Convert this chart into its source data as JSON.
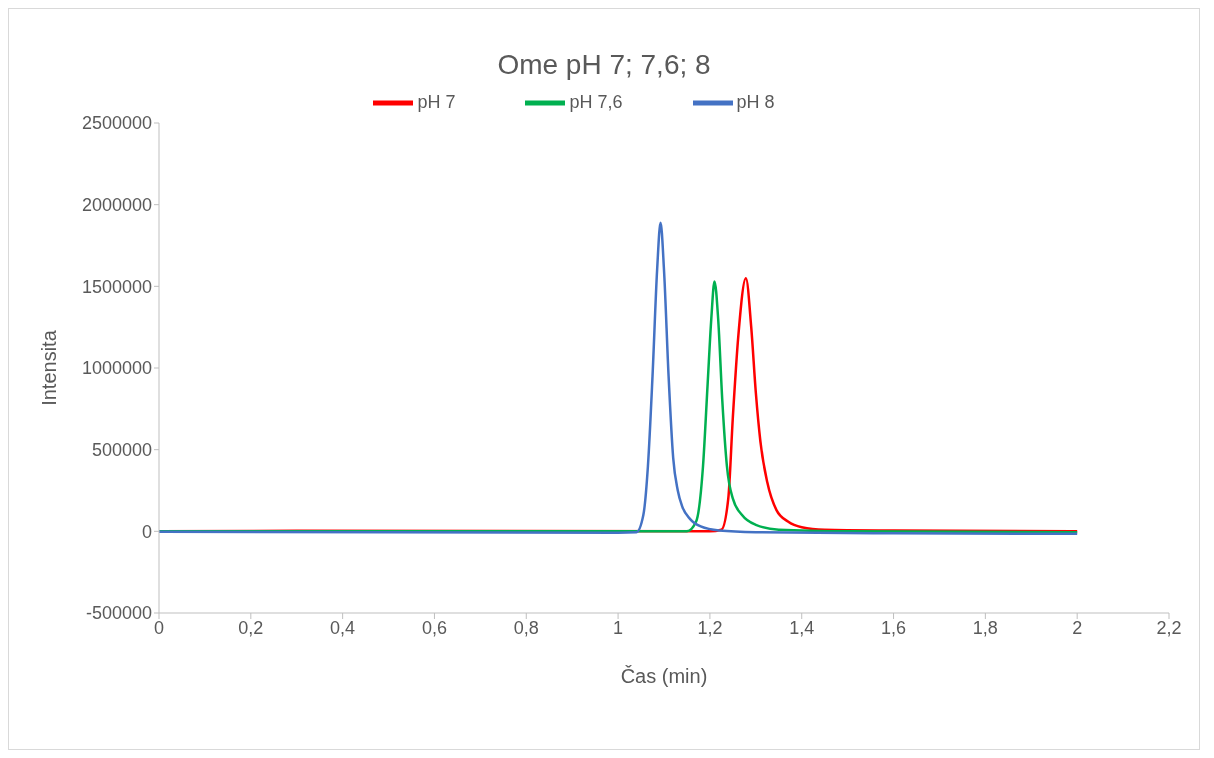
{
  "chart_data": {
    "type": "line",
    "title": "Ome pH 7; 7,6; 8",
    "xlabel": "Čas (min)",
    "ylabel": "Intensita",
    "xlim": [
      0,
      2.2
    ],
    "xticks": [
      0,
      {
        "value": 0.2,
        "label": "0,2"
      },
      {
        "value": 0.4,
        "label": "0,4"
      },
      {
        "value": 0.6,
        "label": "0,6"
      },
      {
        "value": 0.8,
        "label": "0,8"
      },
      1,
      {
        "value": 1.2,
        "label": "1,2"
      },
      {
        "value": 1.4,
        "label": "1,4"
      },
      {
        "value": 1.6,
        "label": "1,6"
      },
      {
        "value": 1.8,
        "label": "1,8"
      },
      2,
      {
        "value": 2.2,
        "label": "2,2"
      }
    ],
    "ylim": [
      -500000,
      2500000
    ],
    "yticks": [
      -500000,
      0,
      500000,
      1000000,
      1500000,
      2000000,
      2500000
    ],
    "grid": false,
    "legend": "top",
    "marker": "none",
    "line_style": "solid",
    "series": [
      {
        "name": "pH 7",
        "color": "#ff0000",
        "x": [
          0,
          0.3,
          1.2,
          1.225,
          1.24,
          1.25,
          1.262,
          1.2784,
          1.29,
          1.3,
          1.31,
          1.325,
          1.345,
          1.37,
          1.4,
          1.45,
          1.6,
          2.0
        ],
        "values": [
          0,
          3000,
          0,
          10000,
          200000,
          700000,
          1200000,
          1550000,
          1250000,
          850000,
          550000,
          300000,
          130000,
          60000,
          25000,
          10000,
          5000,
          0
        ]
      },
      {
        "name": "pH 7,6",
        "color": "#00b050",
        "x": [
          0,
          1.0,
          1.15,
          1.17,
          1.185,
          1.195,
          1.203,
          1.21,
          1.218,
          1.227,
          1.237,
          1.25,
          1.27,
          1.3,
          1.35,
          1.5,
          2.0
        ],
        "values": [
          0,
          0,
          0,
          60000,
          400000,
          900000,
          1300000,
          1530000,
          1300000,
          800000,
          400000,
          200000,
          100000,
          40000,
          10000,
          0,
          -5000
        ]
      },
      {
        "name": "pH 8",
        "color": "#4472c4",
        "x": [
          0,
          0.5,
          1.0,
          1.04,
          1.055,
          1.065,
          1.075,
          1.085,
          1.0925,
          1.1,
          1.11,
          1.12,
          1.13,
          1.14,
          1.157,
          1.18,
          1.22,
          1.3,
          1.6,
          2.0
        ],
        "values": [
          -3000,
          -5000,
          -8000,
          -5000,
          100000,
          400000,
          950000,
          1600000,
          1890000,
          1600000,
          950000,
          450000,
          250000,
          150000,
          75000,
          30000,
          5000,
          -5000,
          -12000,
          -15000
        ]
      }
    ]
  }
}
